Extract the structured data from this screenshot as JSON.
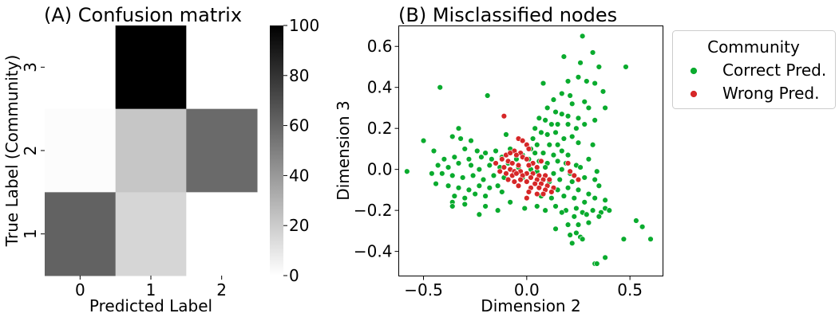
{
  "chart_data": [
    {
      "type": "heatmap",
      "title": "(A) Confusion matrix",
      "xlabel": "Predicted Label",
      "ylabel": "True Label (Community)",
      "x_categories": [
        "0",
        "1",
        "2"
      ],
      "y_categories": [
        "3",
        "2",
        "1"
      ],
      "values": [
        [
          0,
          100,
          0
        ],
        [
          1,
          27,
          65
        ],
        [
          70,
          18,
          0
        ]
      ],
      "colorbar": {
        "min": 0,
        "max": 100,
        "ticks": [
          0,
          20,
          40,
          60,
          80,
          100
        ],
        "colormap": "greys"
      },
      "cell_colors": [
        [
          "#ffffff",
          "#000000",
          "#ffffff"
        ],
        [
          "#fcfcfc",
          "#c6c6c6",
          "#6a6a6a"
        ],
        [
          "#626262",
          "#d6d6d6",
          "#ffffff"
        ]
      ]
    },
    {
      "type": "scatter",
      "title": "(B) Misclassified nodes",
      "xlabel": "Dimension 2",
      "ylabel": "Dimension 3",
      "xlim": [
        -0.62,
        0.66
      ],
      "ylim": [
        -0.52,
        0.7
      ],
      "xticks": [
        "−0.5",
        "0.0",
        "0.5"
      ],
      "xtick_values": [
        -0.5,
        0.0,
        0.5
      ],
      "yticks": [
        "−0.4",
        "−0.2",
        "0.0",
        "0.2",
        "0.4",
        "0.6"
      ],
      "ytick_values": [
        -0.4,
        -0.2,
        0.0,
        0.2,
        0.4,
        0.6
      ],
      "legend": {
        "title": "Community",
        "placement": "outside-right-top"
      },
      "series": [
        {
          "name": "Correct Pred.",
          "color": "#0aab2e",
          "points": [
            [
              0.27,
              0.65
            ],
            [
              0.18,
              0.55
            ],
            [
              0.26,
              0.52
            ],
            [
              0.32,
              0.57
            ],
            [
              0.35,
              0.5
            ],
            [
              0.48,
              0.5
            ],
            [
              -0.42,
              0.4
            ],
            [
              0.08,
              0.42
            ],
            [
              0.2,
              0.43
            ],
            [
              0.25,
              0.45
            ],
            [
              0.29,
              0.43
            ],
            [
              0.17,
              0.37
            ],
            [
              0.21,
              0.36
            ],
            [
              0.33,
              0.42
            ],
            [
              0.37,
              0.38
            ],
            [
              0.13,
              0.34
            ],
            [
              0.22,
              0.32
            ],
            [
              0.28,
              0.33
            ],
            [
              0.3,
              0.3
            ],
            [
              -0.19,
              0.36
            ],
            [
              0.38,
              0.3
            ],
            [
              0.1,
              0.3
            ],
            [
              0.14,
              0.28
            ],
            [
              0.17,
              0.27
            ],
            [
              0.2,
              0.26
            ],
            [
              0.25,
              0.25
            ],
            [
              0.33,
              0.24
            ],
            [
              0.06,
              0.25
            ],
            [
              0.09,
              0.24
            ],
            [
              0.12,
              0.22
            ],
            [
              0.15,
              0.22
            ],
            [
              0.2,
              0.22
            ],
            [
              0.24,
              0.2
            ],
            [
              0.28,
              0.22
            ],
            [
              0.04,
              0.2
            ],
            [
              0.07,
              0.18
            ],
            [
              0.1,
              0.17
            ],
            [
              0.14,
              0.18
            ],
            [
              0.18,
              0.15
            ],
            [
              0.22,
              0.16
            ],
            [
              -0.33,
              0.2
            ],
            [
              -0.36,
              0.16
            ],
            [
              -0.32,
              0.15
            ],
            [
              -0.27,
              0.14
            ],
            [
              -0.1,
              0.17
            ],
            [
              -0.5,
              0.14
            ],
            [
              0.03,
              0.15
            ],
            [
              0.05,
              0.12
            ],
            [
              0.11,
              0.12
            ],
            [
              0.15,
              0.12
            ],
            [
              0.25,
              0.13
            ],
            [
              0.32,
              0.12
            ],
            [
              -0.45,
              0.09
            ],
            [
              -0.3,
              0.1
            ],
            [
              -0.24,
              0.09
            ],
            [
              -0.2,
              0.08
            ],
            [
              -0.15,
              0.09
            ],
            [
              -0.08,
              0.1
            ],
            [
              0.02,
              0.1
            ],
            [
              0.04,
              0.08
            ],
            [
              0.08,
              0.08
            ],
            [
              0.13,
              0.07
            ],
            [
              0.17,
              0.09
            ],
            [
              0.2,
              0.07
            ],
            [
              -0.4,
              0.05
            ],
            [
              -0.35,
              0.06
            ],
            [
              -0.28,
              0.05
            ],
            [
              -0.22,
              0.06
            ],
            [
              -0.17,
              0.05
            ],
            [
              -0.12,
              0.06
            ],
            [
              -0.05,
              0.05
            ],
            [
              -0.02,
              0.07
            ],
            [
              0.01,
              0.05
            ],
            [
              0.06,
              0.04
            ],
            [
              0.1,
              0.03
            ],
            [
              0.15,
              0.04
            ],
            [
              0.19,
              0.03
            ],
            [
              0.24,
              0.02
            ],
            [
              0.3,
              0.05
            ],
            [
              -0.43,
              0.02
            ],
            [
              -0.38,
              0.01
            ],
            [
              -0.33,
              0.03
            ],
            [
              -0.27,
              0.02
            ],
            [
              -0.23,
              0.0
            ],
            [
              -0.18,
              0.02
            ],
            [
              -0.13,
              0.01
            ],
            [
              -0.09,
              0.03
            ],
            [
              -0.04,
              0.01
            ],
            [
              0.02,
              0.0
            ],
            [
              0.05,
              -0.01
            ],
            [
              0.09,
              0.01
            ],
            [
              0.13,
              -0.02
            ],
            [
              0.17,
              0.0
            ],
            [
              0.21,
              -0.02
            ],
            [
              0.26,
              0.01
            ],
            [
              0.34,
              -0.01
            ],
            [
              -0.58,
              -0.01
            ],
            [
              -0.46,
              -0.02
            ],
            [
              -0.41,
              -0.02
            ],
            [
              -0.36,
              -0.03
            ],
            [
              -0.31,
              -0.04
            ],
            [
              -0.26,
              -0.03
            ],
            [
              -0.21,
              -0.05
            ],
            [
              -0.16,
              -0.03
            ],
            [
              -0.11,
              -0.04
            ],
            [
              -0.02,
              -0.04
            ],
            [
              0.11,
              -0.06
            ],
            [
              0.16,
              -0.05
            ],
            [
              0.22,
              -0.06
            ],
            [
              0.28,
              -0.04
            ],
            [
              0.33,
              -0.05
            ],
            [
              -0.44,
              -0.07
            ],
            [
              -0.38,
              -0.08
            ],
            [
              -0.33,
              -0.09
            ],
            [
              -0.28,
              -0.1
            ],
            [
              -0.23,
              -0.08
            ],
            [
              -0.18,
              -0.09
            ],
            [
              -0.14,
              -0.08
            ],
            [
              0.15,
              -0.1
            ],
            [
              0.2,
              -0.09
            ],
            [
              0.25,
              -0.1
            ],
            [
              0.3,
              -0.12
            ],
            [
              0.35,
              -0.08
            ],
            [
              -0.35,
              -0.13
            ],
            [
              -0.3,
              -0.14
            ],
            [
              -0.25,
              -0.12
            ],
            [
              -0.2,
              -0.13
            ],
            [
              -0.12,
              -0.11
            ],
            [
              0.07,
              -0.13
            ],
            [
              0.12,
              -0.14
            ],
            [
              0.18,
              -0.13
            ],
            [
              0.23,
              -0.14
            ],
            [
              0.28,
              -0.16
            ],
            [
              0.33,
              -0.14
            ],
            [
              0.38,
              -0.15
            ],
            [
              -0.36,
              -0.16
            ],
            [
              -0.3,
              -0.17
            ],
            [
              -0.2,
              -0.18
            ],
            [
              -0.08,
              -0.16
            ],
            [
              0.05,
              -0.18
            ],
            [
              0.14,
              -0.18
            ],
            [
              0.19,
              -0.2
            ],
            [
              0.24,
              -0.19
            ],
            [
              0.27,
              -0.21
            ],
            [
              0.32,
              -0.2
            ],
            [
              0.36,
              -0.21
            ],
            [
              0.38,
              -0.19
            ],
            [
              0.4,
              -0.2
            ],
            [
              -0.36,
              -0.18
            ],
            [
              -0.23,
              -0.22
            ],
            [
              -0.14,
              -0.2
            ],
            [
              -0.01,
              -0.19
            ],
            [
              0.09,
              -0.2
            ],
            [
              0.17,
              -0.21
            ],
            [
              0.23,
              -0.23
            ],
            [
              0.29,
              -0.22
            ],
            [
              0.35,
              -0.23
            ],
            [
              0.53,
              -0.25
            ],
            [
              0.56,
              -0.28
            ],
            [
              0.2,
              -0.27
            ],
            [
              0.25,
              -0.27
            ],
            [
              0.3,
              -0.26
            ],
            [
              0.14,
              -0.29
            ],
            [
              0.21,
              -0.32
            ],
            [
              0.24,
              -0.31
            ],
            [
              0.26,
              -0.33
            ],
            [
              0.27,
              -0.34
            ],
            [
              0.6,
              -0.34
            ],
            [
              0.47,
              -0.34
            ],
            [
              0.22,
              -0.36
            ],
            [
              0.38,
              -0.43
            ],
            [
              0.33,
              -0.46
            ],
            [
              0.34,
              -0.46
            ]
          ]
        },
        {
          "name": "Wrong Pred.",
          "color": "#d62728",
          "points": [
            [
              -0.11,
              0.26
            ],
            [
              -0.04,
              0.15
            ],
            [
              -0.02,
              0.14
            ],
            [
              0.0,
              0.12
            ],
            [
              0.01,
              0.1
            ],
            [
              -0.06,
              0.09
            ],
            [
              -0.03,
              0.08
            ],
            [
              -0.1,
              0.07
            ],
            [
              -0.08,
              0.08
            ],
            [
              -0.05,
              0.07
            ],
            [
              -0.02,
              0.06
            ],
            [
              0.0,
              0.05
            ],
            [
              0.03,
              0.03
            ],
            [
              0.07,
              0.04
            ],
            [
              -0.12,
              0.05
            ],
            [
              -0.09,
              0.04
            ],
            [
              -0.07,
              0.03
            ],
            [
              -0.04,
              0.02
            ],
            [
              0.01,
              0.02
            ],
            [
              0.05,
              0.01
            ],
            [
              -0.11,
              0.01
            ],
            [
              -0.08,
              0.0
            ],
            [
              -0.06,
              -0.01
            ],
            [
              -0.03,
              -0.01
            ],
            [
              0.0,
              -0.02
            ],
            [
              0.03,
              -0.02
            ],
            [
              0.06,
              -0.03
            ],
            [
              0.09,
              -0.03
            ],
            [
              -0.13,
              -0.01
            ],
            [
              -0.1,
              -0.02
            ],
            [
              -0.07,
              -0.03
            ],
            [
              -0.05,
              -0.02
            ],
            [
              -0.02,
              -0.03
            ],
            [
              0.02,
              -0.04
            ],
            [
              0.05,
              -0.05
            ],
            [
              0.08,
              -0.05
            ],
            [
              0.11,
              -0.05
            ],
            [
              -0.09,
              -0.05
            ],
            [
              -0.06,
              -0.06
            ],
            [
              -0.03,
              -0.05
            ],
            [
              0.0,
              -0.06
            ],
            [
              0.04,
              -0.07
            ],
            [
              0.07,
              -0.07
            ],
            [
              0.1,
              -0.08
            ],
            [
              0.13,
              -0.09
            ],
            [
              -0.04,
              -0.08
            ],
            [
              0.02,
              -0.09
            ],
            [
              0.06,
              -0.09
            ],
            [
              0.09,
              -0.1
            ],
            [
              0.12,
              -0.11
            ],
            [
              0.01,
              -0.11
            ],
            [
              0.05,
              -0.12
            ],
            [
              0.08,
              -0.12
            ],
            [
              0.0,
              -0.14
            ],
            [
              0.2,
              0.03
            ],
            [
              0.21,
              -0.01
            ],
            [
              0.23,
              -0.03
            ],
            [
              0.25,
              -0.05
            ],
            [
              -0.15,
              0.03
            ]
          ]
        }
      ]
    }
  ]
}
